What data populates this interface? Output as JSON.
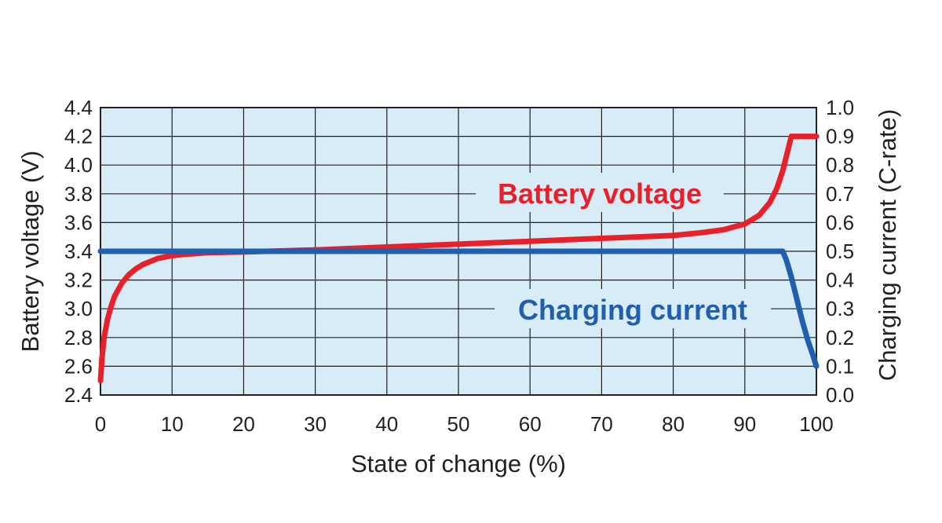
{
  "chart_data": {
    "type": "line",
    "xlabel": "State of change (%)",
    "ylabel": "Battery voltage (V)",
    "y2label": "Charging current (C-rate)",
    "xlim": [
      0,
      100
    ],
    "ylim": [
      2.4,
      4.4
    ],
    "y2lim": [
      0.0,
      1.0
    ],
    "x_ticks": [
      0,
      10,
      20,
      30,
      40,
      50,
      60,
      70,
      80,
      90,
      100
    ],
    "y_ticks": [
      "2.4",
      "2.6",
      "2.8",
      "3.0",
      "3.2",
      "3.4",
      "3.6",
      "3.8",
      "4.0",
      "4.2",
      "4.4"
    ],
    "y2_ticks": [
      "0.0",
      "0.1",
      "0.2",
      "0.3",
      "0.4",
      "0.5",
      "0.6",
      "0.7",
      "0.8",
      "0.9",
      "1.0"
    ],
    "grid": true,
    "plot_background": "#d8ecf8",
    "series": [
      {
        "name": "Battery voltage",
        "axis": "left",
        "color": "#e8202a",
        "points": [
          [
            0,
            2.5
          ],
          [
            0.2,
            2.65
          ],
          [
            0.5,
            2.8
          ],
          [
            1,
            2.93
          ],
          [
            1.5,
            3.02
          ],
          [
            2,
            3.09
          ],
          [
            3,
            3.18
          ],
          [
            4,
            3.24
          ],
          [
            5,
            3.28
          ],
          [
            6,
            3.31
          ],
          [
            8,
            3.35
          ],
          [
            10,
            3.37
          ],
          [
            12,
            3.38
          ],
          [
            15,
            3.39
          ],
          [
            20,
            3.395
          ],
          [
            30,
            3.41
          ],
          [
            40,
            3.43
          ],
          [
            50,
            3.45
          ],
          [
            60,
            3.47
          ],
          [
            70,
            3.49
          ],
          [
            80,
            3.51
          ],
          [
            84,
            3.53
          ],
          [
            87,
            3.55
          ],
          [
            90,
            3.59
          ],
          [
            92,
            3.65
          ],
          [
            93.5,
            3.74
          ],
          [
            94.5,
            3.84
          ],
          [
            95.3,
            3.96
          ],
          [
            96,
            4.1
          ],
          [
            96.5,
            4.2
          ],
          [
            100,
            4.2
          ]
        ]
      },
      {
        "name": "Charging current",
        "axis": "right",
        "color": "#1f5fad",
        "points": [
          [
            0,
            0.5
          ],
          [
            95.3,
            0.5
          ],
          [
            95.8,
            0.47
          ],
          [
            96.5,
            0.41
          ],
          [
            97.3,
            0.33
          ],
          [
            98,
            0.26
          ],
          [
            98.8,
            0.19
          ],
          [
            99.5,
            0.14
          ],
          [
            100,
            0.1
          ]
        ]
      }
    ],
    "annotations": [
      "Battery voltage",
      "Charging current"
    ]
  }
}
